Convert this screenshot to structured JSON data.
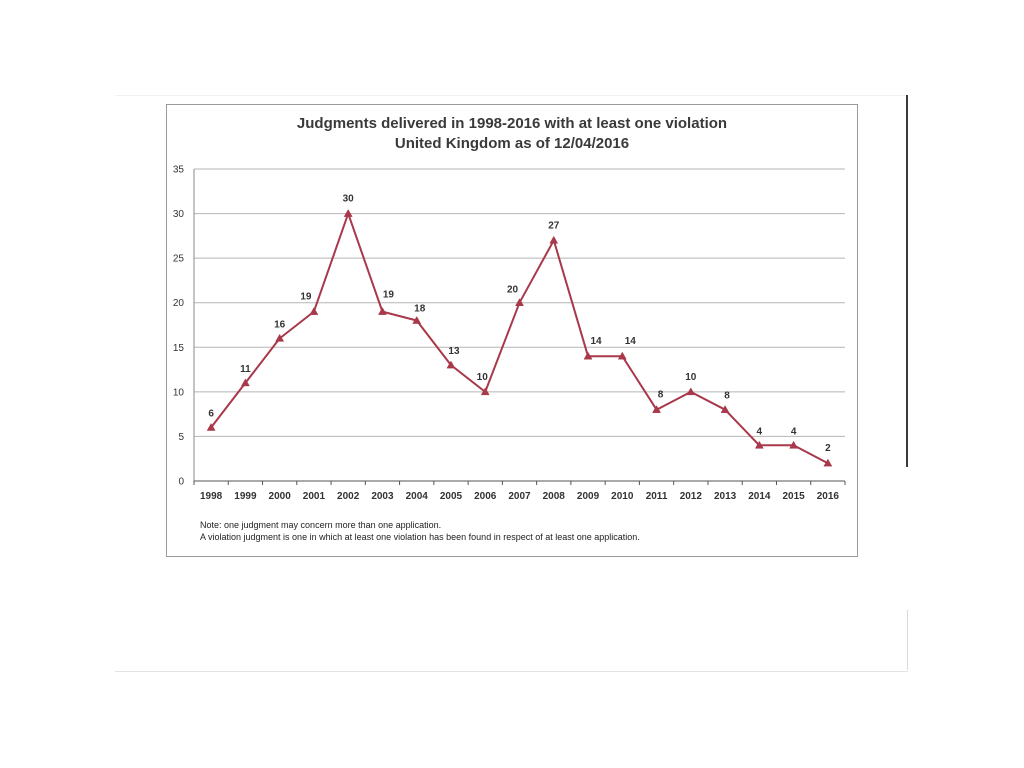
{
  "notes": [
    "Note: one judgment may concern more than one application.",
    "A violation judgment is one in which at least one violation has been found in respect of at least one application."
  ],
  "chart_data": {
    "type": "line",
    "title": "Judgments delivered in 1998-2016 with at least one violation",
    "subtitle": "United Kingdom as of 12/04/2016",
    "xlabel": "",
    "ylabel": "",
    "categories": [
      "1998",
      "1999",
      "2000",
      "2001",
      "2002",
      "2003",
      "2004",
      "2005",
      "2006",
      "2007",
      "2008",
      "2009",
      "2010",
      "2011",
      "2012",
      "2013",
      "2014",
      "2015",
      "2016"
    ],
    "series": [
      {
        "values": [
          6,
          11,
          16,
          19,
          30,
          19,
          18,
          13,
          10,
          20,
          27,
          14,
          14,
          8,
          10,
          8,
          4,
          4,
          2
        ]
      }
    ],
    "ylim": [
      0,
      35
    ],
    "yticks": [
      0,
      5,
      10,
      15,
      20,
      25,
      30,
      35
    ],
    "grid": true,
    "marker": "triangle",
    "line_color": "#a8384a"
  }
}
